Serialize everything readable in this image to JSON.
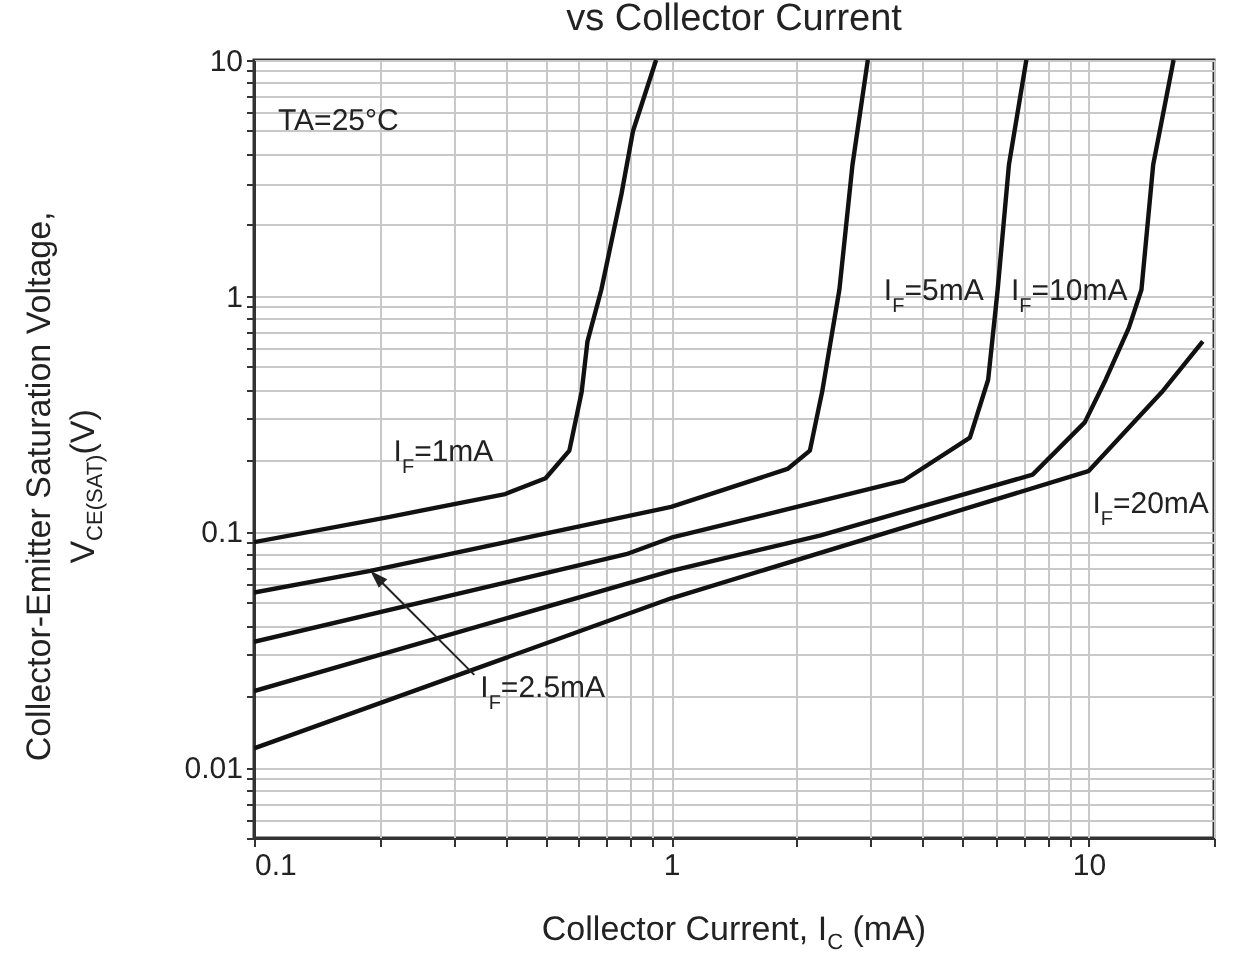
{
  "chart_data": {
    "type": "line",
    "title": "vs Collector Current",
    "xlabel": "Collector Current, I$_{C}$ (mA)",
    "ylabel": "Collector-Emitter Saturation Voltage, V$_{CE(SAT)}$(V)",
    "annotations": [
      "TA=25°C"
    ],
    "log": "xy",
    "grid": true,
    "legend": false,
    "xlim": [
      0.1,
      20
    ],
    "ylim": [
      0.005,
      10
    ],
    "xticks": [
      0.1,
      {
        "value": 0.2,
        "label": null
      },
      {
        "value": 0.3,
        "label": null
      },
      {
        "value": 0.4,
        "label": null
      },
      {
        "value": 0.5,
        "label": null
      },
      {
        "value": 0.6,
        "label": null
      },
      {
        "value": 0.7,
        "label": null
      },
      {
        "value": 0.8,
        "label": null
      },
      {
        "value": 0.9,
        "label": null
      },
      1,
      {
        "value": 2,
        "label": null
      },
      {
        "value": 3,
        "label": null
      },
      {
        "value": 4,
        "label": null
      },
      {
        "value": 5,
        "label": null
      },
      {
        "value": 6,
        "label": null
      },
      {
        "value": 7,
        "label": null
      },
      {
        "value": 8,
        "label": null
      },
      {
        "value": 9,
        "label": null
      },
      10,
      {
        "value": 20,
        "label": null
      }
    ],
    "yticks": [
      {
        "value": 0.005,
        "label": null
      },
      {
        "value": 0.006,
        "label": null
      },
      {
        "value": 0.007,
        "label": null
      },
      {
        "value": 0.008,
        "label": null
      },
      {
        "value": 0.009,
        "label": null
      },
      0.01,
      {
        "value": 0.02,
        "label": null
      },
      {
        "value": 0.03,
        "label": null
      },
      {
        "value": 0.04,
        "label": null
      },
      {
        "value": 0.05,
        "label": null
      },
      {
        "value": 0.06,
        "label": null
      },
      {
        "value": 0.07,
        "label": null
      },
      {
        "value": 0.08,
        "label": null
      },
      {
        "value": 0.09,
        "label": null
      },
      0.1,
      {
        "value": 0.2,
        "label": null
      },
      {
        "value": 0.3,
        "label": null
      },
      {
        "value": 0.4,
        "label": null
      },
      {
        "value": 0.5,
        "label": null
      },
      {
        "value": 0.6,
        "label": null
      },
      {
        "value": 0.7,
        "label": null
      },
      {
        "value": 0.8,
        "label": null
      },
      {
        "value": 0.9,
        "label": null
      },
      1,
      {
        "value": 2,
        "label": null
      },
      {
        "value": 3,
        "label": null
      },
      {
        "value": 4,
        "label": null
      },
      {
        "value": 5,
        "label": null
      },
      {
        "value": 6,
        "label": null
      },
      {
        "value": 7,
        "label": null
      },
      {
        "value": 8,
        "label": null
      },
      {
        "value": 9,
        "label": null
      },
      10
    ],
    "series": [
      {
        "name": "I$_{F}$=1mA",
        "color": "#111111",
        "x": [
          0.1,
          0.21,
          0.4,
          0.5,
          0.57,
          0.61,
          0.63,
          0.68,
          0.76,
          0.81,
          0.92
        ],
        "values": [
          0.09,
          0.115,
          0.144,
          0.168,
          0.22,
          0.39,
          0.64,
          1.06,
          2.7,
          5,
          10
        ]
      },
      {
        "name": "I$_{F}$=2.5mA",
        "color": "#111111",
        "x": [
          0.1,
          0.19,
          1,
          1.9,
          2.15,
          2.27,
          2.3,
          2.53,
          2.72,
          2.96
        ],
        "values": [
          0.055,
          0.068,
          0.127,
          0.184,
          0.22,
          0.35,
          0.39,
          1.06,
          3.6,
          10
        ]
      },
      {
        "name": "I$_{F}$=5mA",
        "color": "#111111",
        "x": [
          0.1,
          0.78,
          1,
          3.6,
          5.2,
          5.75,
          6.06,
          6.45,
          7.1
        ],
        "values": [
          0.034,
          0.08,
          0.094,
          0.164,
          0.25,
          0.44,
          1.06,
          3.6,
          10
        ]
      },
      {
        "name": "I$_{F}$=10mA",
        "color": "#111111",
        "x": [
          0.1,
          1,
          2.27,
          7.35,
          9.8,
          11,
          12.5,
          13.4,
          14.3,
          16
        ],
        "values": [
          0.021,
          0.068,
          0.096,
          0.174,
          0.29,
          0.44,
          0.73,
          1.06,
          3.6,
          10
        ]
      },
      {
        "name": "I$_{F}$=20mA",
        "color": "#111111",
        "x": [
          0.1,
          1,
          10,
          15,
          18.8
        ],
        "values": [
          0.012,
          0.052,
          0.18,
          0.39,
          0.64
        ]
      }
    ]
  }
}
